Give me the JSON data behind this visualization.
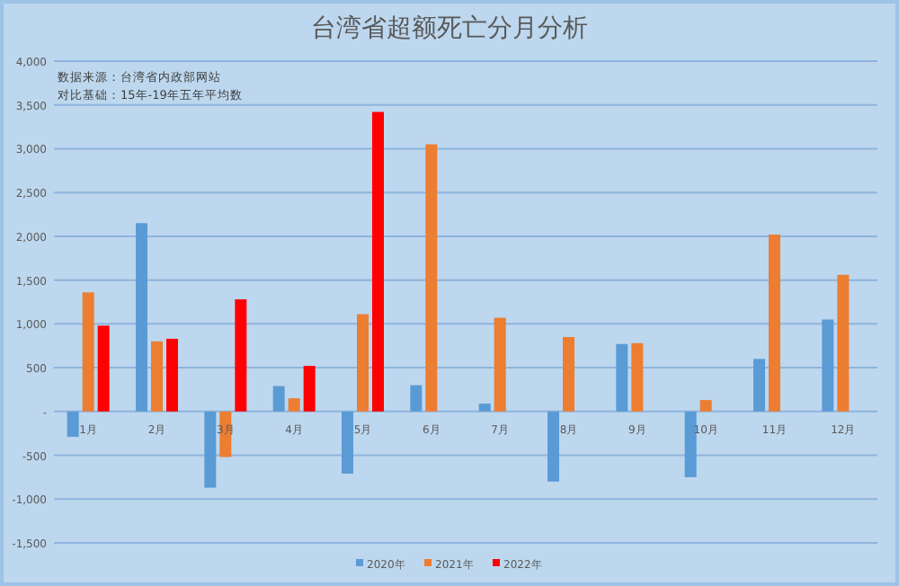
{
  "chart_data": {
    "type": "bar",
    "title": "台湾省超额死亡分月分析",
    "annotations": [
      "数据来源：台湾省内政部网站",
      "对比基础：15年-19年五年平均数"
    ],
    "categories": [
      "1月",
      "2月",
      "3月",
      "4月",
      "5月",
      "6月",
      "7月",
      "8月",
      "9月",
      "10月",
      "11月",
      "12月"
    ],
    "series": [
      {
        "name": "2020年",
        "color": "#5b9bd5",
        "values": [
          -290,
          2150,
          -870,
          290,
          -710,
          300,
          90,
          -800,
          770,
          -750,
          600,
          1050
        ]
      },
      {
        "name": "2021年",
        "color": "#ed7d31",
        "values": [
          1360,
          800,
          -520,
          150,
          1110,
          3050,
          1070,
          850,
          780,
          130,
          2020,
          1560
        ]
      },
      {
        "name": "2022年",
        "color": "#ff0000",
        "values": [
          980,
          830,
          1280,
          520,
          3420,
          null,
          null,
          null,
          null,
          null,
          null,
          null
        ]
      }
    ],
    "ylim": [
      -1500,
      4000
    ],
    "yticks": [
      {
        "value": -1500,
        "label": "-1,500"
      },
      {
        "value": -1000,
        "label": "-1,000"
      },
      {
        "value": -500,
        "label": "-500"
      },
      {
        "value": 0,
        "label": "-"
      },
      {
        "value": 500,
        "label": "500"
      },
      {
        "value": 1000,
        "label": "1,000"
      },
      {
        "value": 1500,
        "label": "1,500"
      },
      {
        "value": 2000,
        "label": "2,000"
      },
      {
        "value": 2500,
        "label": "2,500"
      },
      {
        "value": 3000,
        "label": "3,000"
      },
      {
        "value": 3500,
        "label": "3,500"
      },
      {
        "value": 4000,
        "label": "4,000"
      }
    ],
    "grid": "y",
    "legend": "bottom"
  }
}
